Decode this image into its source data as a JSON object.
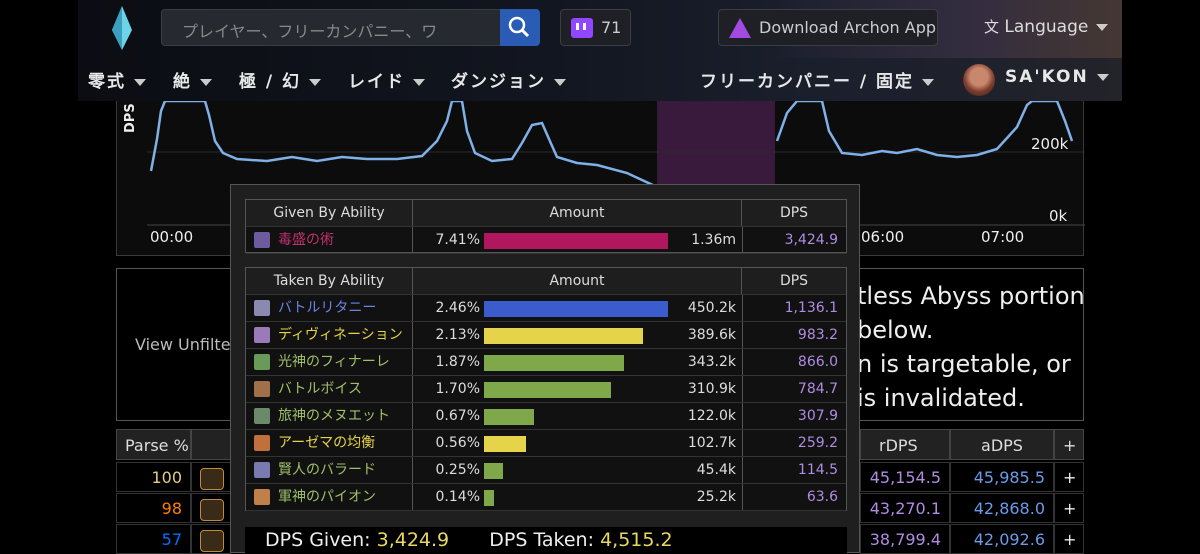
{
  "header": {
    "search_placeholder": "プレイヤー、フリーカンパニー、ワ",
    "twitch_count": "71",
    "archon_label": "Download Archon App",
    "language_label": "Language"
  },
  "nav": {
    "items": [
      "零式",
      "絶",
      "極 / 幻",
      "レイド",
      "ダンジョン"
    ],
    "fc_label": "フリーカンパニー / 固定",
    "user_name": "SA'KON"
  },
  "graph": {
    "ylabel": "DPS",
    "yticks": [
      "200k",
      "0k"
    ],
    "xticks": [
      "00:00",
      "06:00",
      "07:00"
    ]
  },
  "description": {
    "button": "View Unfiltere",
    "lines": [
      "tless Abyss portion",
      "below.",
      "n is targetable, or",
      "is invalidated."
    ]
  },
  "table": {
    "headers": [
      "Parse %",
      "rDPS",
      "aDPS",
      "+"
    ],
    "rows": [
      {
        "parse": "100",
        "rdps": "45,154.5",
        "adps": "45,985.5",
        "color": "#e5cc80"
      },
      {
        "parse": "98",
        "rdps": "43,270.1",
        "adps": "42,868.0",
        "color": "#ff8000"
      },
      {
        "parse": "57",
        "rdps": "38,799.4",
        "adps": "42,092.6",
        "color": "#0070ff"
      }
    ]
  },
  "tooltip": {
    "given": {
      "headers": [
        "Given By Ability",
        "Amount",
        "DPS"
      ],
      "rows": [
        {
          "name": "毒盛の術",
          "pct": "7.41%",
          "amount": "1.36m",
          "dps": "3,424.9",
          "frac": 1.0,
          "bar_color": "#b0175e",
          "name_color": "#c0306e",
          "icon_color": "#6e5a9e"
        }
      ]
    },
    "taken": {
      "headers": [
        "Taken By Ability",
        "Amount",
        "DPS"
      ],
      "rows": [
        {
          "name": "バトルリタニー",
          "pct": "2.46%",
          "amount": "450.2k",
          "dps": "1,136.1",
          "frac": 1.0,
          "bar_color": "#3a5ccc",
          "name_color": "#6b84e8",
          "icon_color": "#8a8ab0"
        },
        {
          "name": "ディヴィネーション",
          "pct": "2.13%",
          "amount": "389.6k",
          "dps": "983.2",
          "frac": 0.866,
          "bar_color": "#e5d34a",
          "name_color": "#e5d34a",
          "icon_color": "#9a7ab8"
        },
        {
          "name": "光神のフィナーレ",
          "pct": "1.87%",
          "amount": "343.2k",
          "dps": "866.0",
          "frac": 0.762,
          "bar_color": "#7fa84a",
          "name_color": "#9fc06a",
          "icon_color": "#6a9a5a"
        },
        {
          "name": "バトルボイス",
          "pct": "1.70%",
          "amount": "310.9k",
          "dps": "784.7",
          "frac": 0.691,
          "bar_color": "#7fa84a",
          "name_color": "#9fc06a",
          "icon_color": "#a0704a"
        },
        {
          "name": "旅神のメヌエット",
          "pct": "0.67%",
          "amount": "122.0k",
          "dps": "307.9",
          "frac": 0.271,
          "bar_color": "#7fa84a",
          "name_color": "#9fc06a",
          "icon_color": "#6a8a6a"
        },
        {
          "name": "アーゼマの均衡",
          "pct": "0.56%",
          "amount": "102.7k",
          "dps": "259.2",
          "frac": 0.228,
          "bar_color": "#e5d34a",
          "name_color": "#e5d34a",
          "icon_color": "#c0703a"
        },
        {
          "name": "賢人のバラード",
          "pct": "0.25%",
          "amount": "45.4k",
          "dps": "114.5",
          "frac": 0.101,
          "bar_color": "#7fa84a",
          "name_color": "#9fc06a",
          "icon_color": "#7a7ab0"
        },
        {
          "name": "軍神のパイオン",
          "pct": "0.14%",
          "amount": "25.2k",
          "dps": "63.6",
          "frac": 0.056,
          "bar_color": "#7fa84a",
          "name_color": "#9fc06a",
          "icon_color": "#c0804a"
        }
      ]
    },
    "footer": {
      "given_label": "DPS Given:",
      "given_value": "3,424.9",
      "taken_label": "DPS Taken:",
      "taken_value": "4,515.2"
    }
  }
}
